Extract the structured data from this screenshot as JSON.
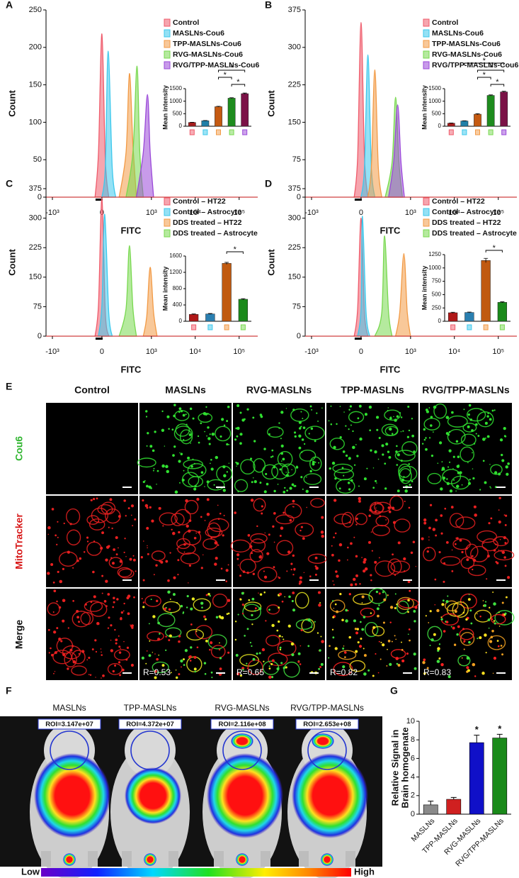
{
  "chart_data": [
    {
      "type": "area",
      "panel_label": "A",
      "xlabel": "FITC",
      "ylabel": "Count",
      "xscale": "biexponential",
      "xlim": [
        -1400,
        265000
      ],
      "xticks": [
        {
          "value": -1000,
          "label": "-10³"
        },
        0,
        {
          "value": 1000,
          "label": "10³"
        },
        {
          "value": 10000,
          "label": "10⁴"
        },
        {
          "value": 100000,
          "label": "10⁵"
        }
      ],
      "ylim": [
        0,
        250
      ],
      "yticks": [
        0,
        50,
        100,
        150,
        200,
        250
      ],
      "series": [
        {
          "name": "Control",
          "color": "#ef5b6b",
          "x": [
            -55,
            -27,
            0,
            27,
            55
          ],
          "values": [
            0,
            60,
            218,
            50,
            0
          ]
        },
        {
          "name": "MASLNs-Cou6",
          "color": "#3cc8ec",
          "x": [
            0,
            27,
            50,
            85,
            118
          ],
          "values": [
            0,
            40,
            195,
            40,
            0
          ]
        },
        {
          "name": "TPP-MASLNs-Cou6",
          "color": "#f29a45",
          "x": [
            155,
            245,
            300,
            367,
            446
          ],
          "values": [
            0,
            60,
            165,
            70,
            0
          ]
        },
        {
          "name": "RVG-MASLNs-Cou6",
          "color": "#78d84f",
          "x": [
            245,
            367,
            460,
            537,
            648
          ],
          "values": [
            0,
            60,
            175,
            60,
            0
          ]
        },
        {
          "name": "RVG/TPP-MASLNs-Cou6",
          "color": "#9a48d8",
          "x": [
            446,
            648,
            810,
            936,
            1122
          ],
          "values": [
            0,
            60,
            137,
            60,
            0
          ]
        }
      ],
      "inset": {
        "type": "bar",
        "ylabel": "Mean intensity",
        "ylim": [
          0,
          1500
        ],
        "yticks": [
          0,
          500,
          1000,
          1500
        ],
        "values": [
          150,
          220,
          780,
          1120,
          1300
        ],
        "errors": [
          10,
          10,
          15,
          20,
          25
        ],
        "colors": [
          "#a51c1c",
          "#1f7fa8",
          "#c55a11",
          "#1e8c1e",
          "#7b1247"
        ],
        "significance": [
          {
            "text": "*",
            "between": [
              2,
              4
            ]
          },
          {
            "text": "*",
            "between": [
              2,
              3
            ]
          },
          {
            "text": "*",
            "between": [
              3,
              4
            ]
          }
        ]
      }
    },
    {
      "type": "area",
      "panel_label": "B",
      "xlabel": "FITC",
      "ylabel": "Count",
      "xscale": "biexponential",
      "xlim": [
        -1400,
        265000
      ],
      "xticks": [
        {
          "value": -1000,
          "label": "-10³"
        },
        0,
        {
          "value": 1000,
          "label": "10³"
        },
        {
          "value": 10000,
          "label": "10⁴"
        },
        {
          "value": 100000,
          "label": "10⁵"
        }
      ],
      "ylim": [
        0,
        375
      ],
      "yticks": [
        0,
        75,
        150,
        225,
        300,
        375
      ],
      "series": [
        {
          "name": "Control",
          "color": "#ef5b6b",
          "x": [
            -55,
            -27,
            0,
            27,
            55
          ],
          "values": [
            0,
            80,
            350,
            80,
            0
          ]
        },
        {
          "name": "MASLNs-Cou6",
          "color": "#3cc8ec",
          "x": [
            0,
            27,
            55,
            85,
            118
          ],
          "values": [
            0,
            60,
            285,
            60,
            0
          ]
        },
        {
          "name": "TPP-MASLNs-Cou6",
          "color": "#f29a45",
          "x": [
            55,
            85,
            118,
            155,
            197
          ],
          "values": [
            0,
            60,
            255,
            60,
            0
          ]
        },
        {
          "name": "RVG-MASLNs-Cou6",
          "color": "#78d84f",
          "x": [
            245,
            367,
            446,
            537,
            648
          ],
          "values": [
            0,
            70,
            200,
            70,
            0
          ]
        },
        {
          "name": "RVG/TPP-MASLNs-Cou6",
          "color": "#9a48d8",
          "x": [
            300,
            400,
            500,
            600,
            720
          ],
          "values": [
            0,
            70,
            185,
            70,
            0
          ]
        }
      ],
      "inset": {
        "type": "bar",
        "ylabel": "Mean intensity",
        "ylim": [
          0,
          1500
        ],
        "yticks": [
          0,
          500,
          1000,
          1500
        ],
        "values": [
          120,
          210,
          480,
          1230,
          1370
        ],
        "errors": [
          10,
          10,
          20,
          20,
          25
        ],
        "colors": [
          "#a51c1c",
          "#1f7fa8",
          "#c55a11",
          "#1e8c1e",
          "#7b1247"
        ],
        "significance": [
          {
            "text": "*",
            "between": [
              1,
              4
            ]
          },
          {
            "text": "*",
            "between": [
              2,
              4
            ]
          },
          {
            "text": "*",
            "between": [
              2,
              3
            ]
          },
          {
            "text": "*",
            "between": [
              3,
              4
            ]
          }
        ]
      }
    },
    {
      "type": "area",
      "panel_label": "C",
      "xlabel": "FITC",
      "ylabel": "Count",
      "xscale": "biexponential",
      "xlim": [
        -1400,
        265000
      ],
      "xticks": [
        {
          "value": -1000,
          "label": "-10³"
        },
        0,
        {
          "value": 1000,
          "label": "10³"
        },
        {
          "value": 10000,
          "label": "10⁴"
        },
        {
          "value": 100000,
          "label": "10⁵"
        }
      ],
      "ylim": [
        0,
        375
      ],
      "yticks": [
        0,
        75,
        150,
        225,
        300,
        375
      ],
      "series": [
        {
          "name": "Control – HT22",
          "color": "#ef5b6b",
          "x": [
            -55,
            -27,
            0,
            27,
            55
          ],
          "values": [
            0,
            80,
            350,
            60,
            0
          ]
        },
        {
          "name": "Control – Astrocyte",
          "color": "#3cc8ec",
          "x": [
            -27,
            0,
            22,
            55,
            85
          ],
          "values": [
            0,
            80,
            310,
            60,
            0
          ]
        },
        {
          "name": "DDS treated – HT22",
          "color": "#f29a45",
          "x": [
            648,
            780,
            936,
            1122,
            1349
          ],
          "values": [
            0,
            50,
            175,
            60,
            0
          ]
        },
        {
          "name": "DDS treated – Astrocyte",
          "color": "#78d84f",
          "x": [
            155,
            245,
            300,
            367,
            446
          ],
          "values": [
            0,
            70,
            230,
            70,
            0
          ]
        }
      ],
      "inset": {
        "type": "bar",
        "ylabel": "Mean intensity",
        "ylim": [
          0,
          1600
        ],
        "yticks": [
          0,
          400,
          800,
          1200,
          1600
        ],
        "values": [
          170,
          180,
          1420,
          540
        ],
        "errors": [
          10,
          10,
          25,
          15
        ],
        "colors": [
          "#b01818",
          "#2a7fb0",
          "#c05a10",
          "#1a8a1a"
        ],
        "significance": [
          {
            "text": "*",
            "between": [
              2,
              3
            ]
          }
        ]
      }
    },
    {
      "type": "area",
      "panel_label": "D",
      "xlabel": "FITC",
      "ylabel": "Count",
      "xscale": "biexponential",
      "xlim": [
        -1400,
        265000
      ],
      "xticks": [
        {
          "value": -1000,
          "label": "-10³"
        },
        0,
        {
          "value": 1000,
          "label": "10³"
        },
        {
          "value": 10000,
          "label": "10⁴"
        },
        {
          "value": 100000,
          "label": "10⁵"
        }
      ],
      "ylim": [
        0,
        375
      ],
      "yticks": [
        0,
        75,
        150,
        225,
        300,
        375
      ],
      "series": [
        {
          "name": "Control – HT22",
          "color": "#ef5b6b",
          "x": [
            -55,
            -27,
            0,
            27,
            55
          ],
          "values": [
            0,
            70,
            300,
            60,
            0
          ]
        },
        {
          "name": "Control – Astrocyte",
          "color": "#3cc8ec",
          "x": [
            -27,
            0,
            11,
            40,
            70
          ],
          "values": [
            0,
            70,
            305,
            60,
            0
          ]
        },
        {
          "name": "DDS treated – HT22",
          "color": "#f29a45",
          "x": [
            446,
            560,
            700,
            840,
            1000
          ],
          "values": [
            0,
            60,
            210,
            60,
            0
          ]
        },
        {
          "name": "DDS treated – Astrocyte",
          "color": "#78d84f",
          "x": [
            118,
            197,
            235,
            300,
            367
          ],
          "values": [
            0,
            60,
            255,
            60,
            0
          ]
        }
      ],
      "inset": {
        "type": "bar",
        "ylabel": "Mean intensity",
        "ylim": [
          0,
          1250
        ],
        "yticks": [
          0,
          250,
          500,
          750,
          1000,
          1250
        ],
        "values": [
          160,
          165,
          1140,
          355
        ],
        "errors": [
          10,
          8,
          40,
          10
        ],
        "colors": [
          "#b01818",
          "#2a7fb0",
          "#c05a10",
          "#1a8a1a"
        ],
        "significance": [
          {
            "text": "*",
            "between": [
              2,
              3
            ]
          }
        ]
      }
    },
    {
      "type": "bar",
      "panel_label": "G",
      "ylabel": [
        "Relative Signal in",
        "Brain homogenate"
      ],
      "categories": [
        "MASLNs",
        "TPP-MASLNs",
        "RVG-MASLNs",
        "RVG/TPP-MASLNs"
      ],
      "values": [
        1.0,
        1.6,
        7.7,
        8.2
      ],
      "errors": [
        0.4,
        0.2,
        0.8,
        0.4
      ],
      "annotations": [
        null,
        null,
        "*",
        "*"
      ],
      "colors": [
        "#8a8a8a",
        "#d02020",
        "#1010c8",
        "#1a8a1a"
      ],
      "ylim": [
        0,
        10
      ],
      "yticks": [
        0,
        2,
        4,
        6,
        8,
        10
      ]
    }
  ],
  "panel_e": {
    "label": "E",
    "columns": [
      "Control",
      "MASLNs",
      "RVG-MASLNs",
      "TPP-MASLNs",
      "RVG/TPP-MASLNs"
    ],
    "rows": [
      "Cou6",
      "MitoTracker",
      "Merge"
    ],
    "colocalization": [
      null,
      "R=0.53",
      "R=0.65",
      "R=0.82",
      "R=0.83"
    ]
  },
  "panel_f": {
    "label": "F",
    "groups": [
      {
        "name": "MASLNs",
        "roi": "ROI=3.147e+07"
      },
      {
        "name": "TPP-MASLNs",
        "roi": "ROI=4.372e+07"
      },
      {
        "name": "RVG-MASLNs",
        "roi": "ROI=2.116e+08"
      },
      {
        "name": "RVG/TPP-MASLNs",
        "roi": "ROI=2.653e+08"
      }
    ],
    "scale": {
      "low": "Low",
      "high": "High"
    }
  }
}
